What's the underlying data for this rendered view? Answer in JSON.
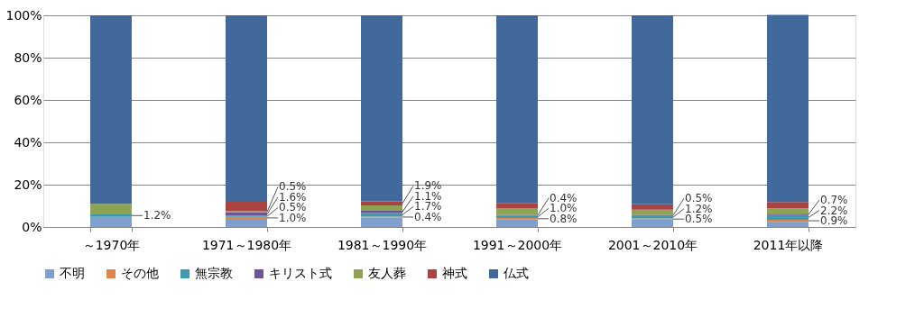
{
  "chart_data": {
    "type": "bar",
    "stacked": true,
    "categories": [
      "～1970年",
      "1971～1980年",
      "1981～1990年",
      "1991～2000年",
      "2001～2010年",
      "2011年以降"
    ],
    "ylim": [
      0,
      100
    ],
    "yticks": [
      {
        "value": 0,
        "label": "0%"
      },
      {
        "value": 20,
        "label": "20%"
      },
      {
        "value": 40,
        "label": "40%"
      },
      {
        "value": 60,
        "label": "60%"
      },
      {
        "value": 80,
        "label": "80%"
      },
      {
        "value": 100,
        "label": "100%"
      }
    ],
    "grid": "y",
    "legend": "bottom",
    "series": [
      {
        "name": "不明",
        "color": "#7f9fcf",
        "values": [
          4.8,
          3.8,
          4.5,
          3.5,
          3.5,
          2.5
        ],
        "value_labels": [
          null,
          null,
          null,
          null,
          null,
          null
        ]
      },
      {
        "name": "その他",
        "color": "#e0844a",
        "values": [
          0,
          1.0,
          0.4,
          0.8,
          0.5,
          0.9
        ],
        "value_labels": [
          null,
          "1.0%",
          "0.4%",
          "0.8%",
          "0.5%",
          "0.9%"
        ]
      },
      {
        "name": "無宗教",
        "color": "#3f9ab0",
        "values": [
          1.2,
          0.5,
          1.7,
          1.0,
          1.2,
          2.2
        ],
        "value_labels": [
          "1.2%",
          "0.5%",
          "1.7%",
          "1.0%",
          "1.2%",
          "2.2%"
        ]
      },
      {
        "name": "キリスト式",
        "color": "#6c5497",
        "values": [
          0,
          1.6,
          1.1,
          0.4,
          0.5,
          0.7
        ],
        "value_labels": [
          null,
          "1.6%",
          "1.1%",
          "0.4%",
          "0.5%",
          "0.7%"
        ]
      },
      {
        "name": "友人葬",
        "color": "#8ea455",
        "values": [
          5.0,
          0.5,
          2.5,
          3.0,
          2.5,
          2.5
        ],
        "value_labels": [
          null,
          "0.5%",
          null,
          null,
          null,
          null
        ]
      },
      {
        "name": "神式",
        "color": "#a94442",
        "values": [
          0,
          4.5,
          1.9,
          2.5,
          2.5,
          3.0
        ],
        "value_labels": [
          null,
          null,
          "1.9%",
          null,
          null,
          null
        ]
      },
      {
        "name": "仏式",
        "color": "#41699b",
        "values": [
          89.0,
          88.1,
          87.9,
          88.8,
          89.3,
          88.4
        ],
        "value_labels": [
          null,
          null,
          null,
          null,
          null,
          null
        ]
      }
    ]
  }
}
